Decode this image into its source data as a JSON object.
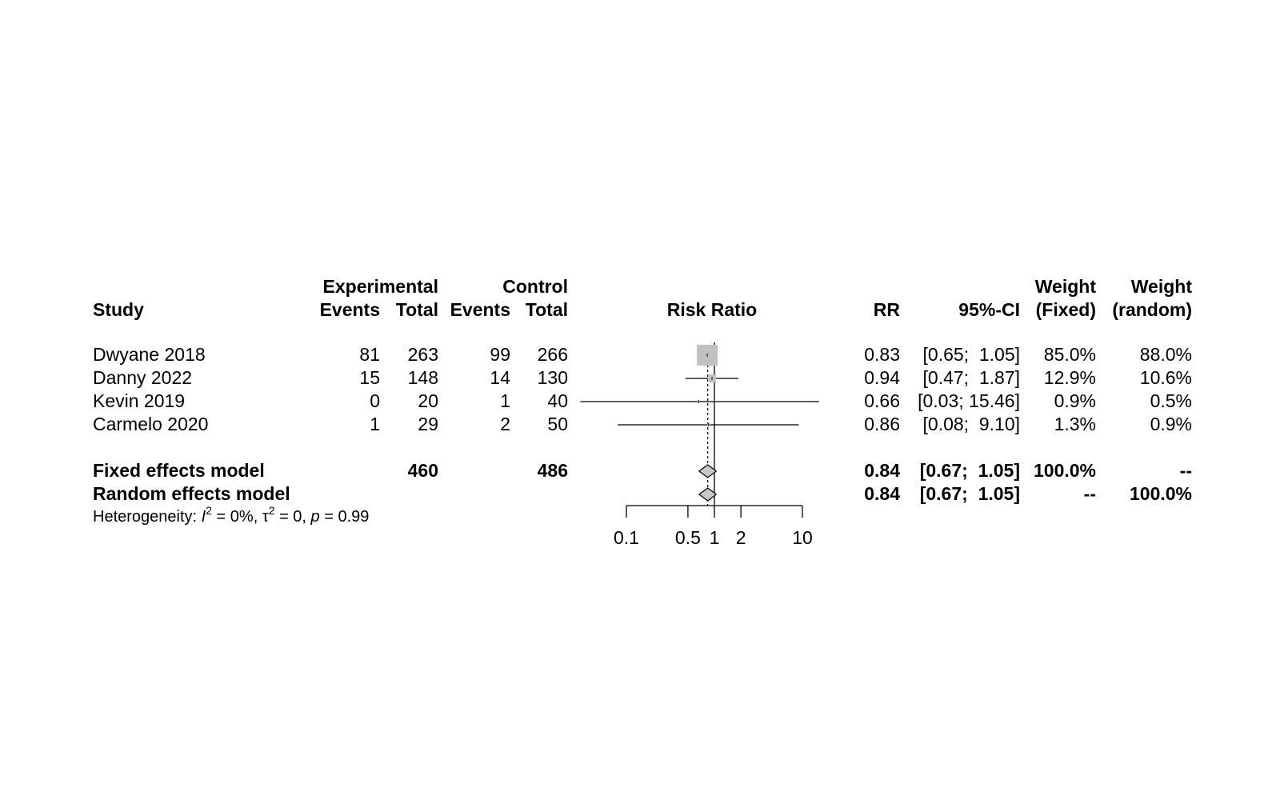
{
  "headers": {
    "study": "Study",
    "experimental": "Experimental",
    "control": "Control",
    "events": "Events",
    "total": "Total",
    "risk_ratio": "Risk Ratio",
    "rr": "RR",
    "ci": "95%-CI",
    "weight": "Weight",
    "fixed": "(Fixed)",
    "random": "(random)"
  },
  "studies": [
    {
      "name": "Dwyane 2018",
      "exp_events": "81",
      "exp_total": "263",
      "ctrl_events": "99",
      "ctrl_total": "266",
      "rr": "0.83",
      "ci": "[0.65;  1.05]",
      "w_fixed": "85.0%",
      "w_random": "88.0%"
    },
    {
      "name": "Danny 2022",
      "exp_events": "15",
      "exp_total": "148",
      "ctrl_events": "14",
      "ctrl_total": "130",
      "rr": "0.94",
      "ci": "[0.47;  1.87]",
      "w_fixed": "12.9%",
      "w_random": "10.6%"
    },
    {
      "name": "Kevin 2019",
      "exp_events": "0",
      "exp_total": "20",
      "ctrl_events": "1",
      "ctrl_total": "40",
      "rr": "0.66",
      "ci": "[0.03; 15.46]",
      "w_fixed": "0.9%",
      "w_random": "0.5%"
    },
    {
      "name": "Carmelo 2020",
      "exp_events": "1",
      "exp_total": "29",
      "ctrl_events": "2",
      "ctrl_total": "50",
      "rr": "0.86",
      "ci": "[0.08;  9.10]",
      "w_fixed": "1.3%",
      "w_random": "0.9%"
    }
  ],
  "models": [
    {
      "name": "Fixed effects model",
      "exp_total": "460",
      "ctrl_total": "486",
      "rr": "0.84",
      "ci": "[0.67;  1.05]",
      "w_fixed": "100.0%",
      "w_random": "--"
    },
    {
      "name": "Random effects model",
      "exp_total": "",
      "ctrl_total": "",
      "rr": "0.84",
      "ci": "[0.67;  1.05]",
      "w_fixed": "--",
      "w_random": "100.0%"
    }
  ],
  "heterogeneity": {
    "prefix": "Heterogeneity: ",
    "i_symbol": "I",
    "i_sup": "2",
    "i_value": " = 0%, ",
    "tau_symbol": "τ",
    "tau_sup": "2",
    "tau_value": " = 0, ",
    "p_symbol": "p",
    "p_value": " = 0.99"
  },
  "chart_data": {
    "type": "forest",
    "scale": "log",
    "xlim": [
      0.1,
      10
    ],
    "null_value": 1,
    "ticks": [
      0.1,
      0.5,
      1,
      2,
      10
    ],
    "tick_labels": [
      "0.1",
      "0.5",
      "1",
      "2",
      "10"
    ],
    "xlabel": "Risk Ratio",
    "studies": [
      {
        "label": "Dwyane 2018",
        "rr": 0.83,
        "lower": 0.65,
        "upper": 1.05,
        "weight": 85.0
      },
      {
        "label": "Danny 2022",
        "rr": 0.94,
        "lower": 0.47,
        "upper": 1.87,
        "weight": 12.9
      },
      {
        "label": "Kevin 2019",
        "rr": 0.66,
        "lower": 0.03,
        "upper": 15.46,
        "weight": 0.9
      },
      {
        "label": "Carmelo 2020",
        "rr": 0.86,
        "lower": 0.08,
        "upper": 9.1,
        "weight": 1.3
      }
    ],
    "pooled": [
      {
        "label": "Fixed effects model",
        "rr": 0.84,
        "lower": 0.67,
        "upper": 1.05
      },
      {
        "label": "Random effects model",
        "rr": 0.84,
        "lower": 0.67,
        "upper": 1.05
      }
    ],
    "colors": {
      "box": "#c0c0c0",
      "diamond": "#c8c8c8",
      "line": "#000000"
    }
  }
}
